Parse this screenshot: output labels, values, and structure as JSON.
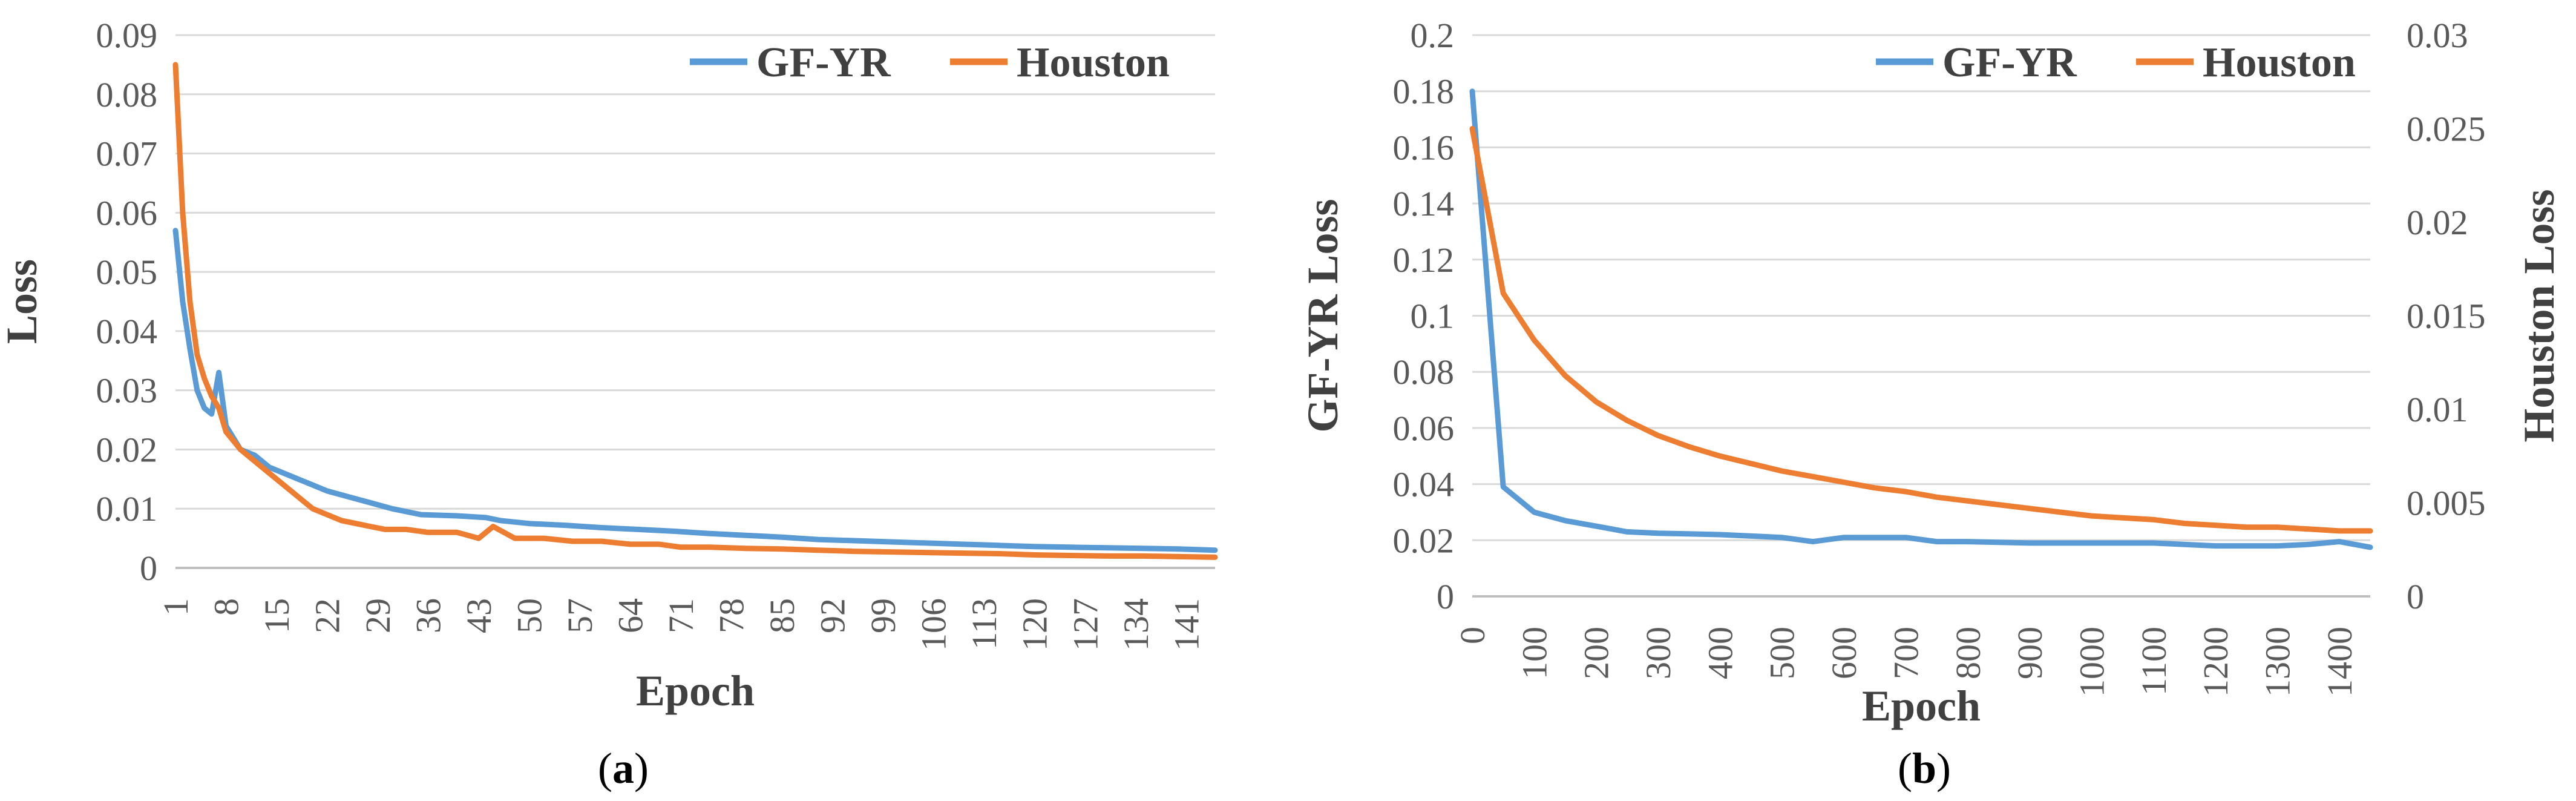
{
  "colors": {
    "gf_yr": "#5b9bd5",
    "houston": "#ed7d31",
    "grid": "#d9d9d9",
    "axis": "#bfbfbf"
  },
  "captions": [
    {
      "open": "(",
      "letter": "a",
      "close": ")"
    },
    {
      "open": "(",
      "letter": "b",
      "close": ")"
    }
  ],
  "chart_data": [
    {
      "type": "line",
      "panel": "a",
      "title": "",
      "xlabel": "Epoch",
      "ylabel": "Loss",
      "ylim": [
        0,
        0.09
      ],
      "grid": true,
      "legend": "top-right",
      "yticks": [
        "0",
        "0.01",
        "0.02",
        "0.03",
        "0.04",
        "0.05",
        "0.06",
        "0.07",
        "0.08",
        "0.09"
      ],
      "xticks": [
        "1",
        "8",
        "15",
        "22",
        "29",
        "36",
        "43",
        "50",
        "57",
        "64",
        "71",
        "78",
        "85",
        "92",
        "99",
        "106",
        "113",
        "120",
        "127",
        "134",
        "141"
      ],
      "xrange": [
        1,
        145
      ],
      "series": [
        {
          "name": "GF-YR",
          "color": "#5b9bd5",
          "points": [
            [
              1,
              0.057
            ],
            [
              2,
              0.045
            ],
            [
              3,
              0.037
            ],
            [
              4,
              0.03
            ],
            [
              5,
              0.027
            ],
            [
              6,
              0.026
            ],
            [
              7,
              0.033
            ],
            [
              8,
              0.024
            ],
            [
              10,
              0.02
            ],
            [
              12,
              0.019
            ],
            [
              14,
              0.017
            ],
            [
              16,
              0.016
            ],
            [
              18,
              0.015
            ],
            [
              20,
              0.014
            ],
            [
              22,
              0.013
            ],
            [
              25,
              0.012
            ],
            [
              28,
              0.011
            ],
            [
              31,
              0.01
            ],
            [
              35,
              0.009
            ],
            [
              40,
              0.0088
            ],
            [
              44,
              0.0085
            ],
            [
              46,
              0.008
            ],
            [
              50,
              0.0075
            ],
            [
              55,
              0.0072
            ],
            [
              60,
              0.0068
            ],
            [
              65,
              0.0065
            ],
            [
              70,
              0.0062
            ],
            [
              75,
              0.0058
            ],
            [
              80,
              0.0055
            ],
            [
              85,
              0.0052
            ],
            [
              90,
              0.0048
            ],
            [
              95,
              0.0046
            ],
            [
              100,
              0.0044
            ],
            [
              105,
              0.0042
            ],
            [
              110,
              0.004
            ],
            [
              115,
              0.0038
            ],
            [
              120,
              0.0036
            ],
            [
              125,
              0.0035
            ],
            [
              130,
              0.0034
            ],
            [
              135,
              0.0033
            ],
            [
              140,
              0.0032
            ],
            [
              145,
              0.003
            ]
          ]
        },
        {
          "name": "Houston",
          "color": "#ed7d31",
          "points": [
            [
              1,
              0.085
            ],
            [
              2,
              0.06
            ],
            [
              3,
              0.045
            ],
            [
              4,
              0.036
            ],
            [
              5,
              0.032
            ],
            [
              6,
              0.029
            ],
            [
              7,
              0.027
            ],
            [
              8,
              0.023
            ],
            [
              10,
              0.02
            ],
            [
              12,
              0.018
            ],
            [
              14,
              0.016
            ],
            [
              16,
              0.014
            ],
            [
              18,
              0.012
            ],
            [
              20,
              0.01
            ],
            [
              22,
              0.009
            ],
            [
              24,
              0.008
            ],
            [
              26,
              0.0075
            ],
            [
              28,
              0.007
            ],
            [
              30,
              0.0065
            ],
            [
              33,
              0.0065
            ],
            [
              36,
              0.006
            ],
            [
              40,
              0.006
            ],
            [
              43,
              0.005
            ],
            [
              45,
              0.007
            ],
            [
              48,
              0.005
            ],
            [
              52,
              0.005
            ],
            [
              56,
              0.0045
            ],
            [
              60,
              0.0045
            ],
            [
              64,
              0.004
            ],
            [
              68,
              0.004
            ],
            [
              71,
              0.0035
            ],
            [
              75,
              0.0035
            ],
            [
              80,
              0.0033
            ],
            [
              85,
              0.0032
            ],
            [
              90,
              0.003
            ],
            [
              95,
              0.0028
            ],
            [
              100,
              0.0027
            ],
            [
              105,
              0.0026
            ],
            [
              110,
              0.0025
            ],
            [
              115,
              0.0024
            ],
            [
              120,
              0.0022
            ],
            [
              125,
              0.0021
            ],
            [
              130,
              0.002
            ],
            [
              135,
              0.002
            ],
            [
              140,
              0.0019
            ],
            [
              145,
              0.0018
            ]
          ]
        }
      ]
    },
    {
      "type": "line",
      "panel": "b",
      "title": "",
      "xlabel": "Epoch",
      "ylabel": "GF-YR  Loss",
      "y2label": "Houston  Loss",
      "ylim": [
        0,
        0.2
      ],
      "y2lim": [
        0,
        0.03
      ],
      "grid": true,
      "legend": "top-right",
      "yticks": [
        "0",
        "0.02",
        "0.04",
        "0.06",
        "0.08",
        "0.1",
        "0.12",
        "0.14",
        "0.16",
        "0.18",
        "0.2"
      ],
      "y2ticks": [
        "0",
        "0.005",
        "0.01",
        "0.015",
        "0.02",
        "0.025",
        "0.03"
      ],
      "xticks": [
        "0",
        "100",
        "200",
        "300",
        "400",
        "500",
        "600",
        "700",
        "800",
        "900",
        "1000",
        "1100",
        "1200",
        "1300",
        "1400"
      ],
      "xrange": [
        0,
        1450
      ],
      "series": [
        {
          "name": "GF-YR",
          "color": "#5b9bd5",
          "axis": "left",
          "points": [
            [
              0,
              0.18
            ],
            [
              50,
              0.039
            ],
            [
              100,
              0.03
            ],
            [
              150,
              0.027
            ],
            [
              200,
              0.025
            ],
            [
              250,
              0.023
            ],
            [
              300,
              0.0225
            ],
            [
              400,
              0.022
            ],
            [
              500,
              0.021
            ],
            [
              550,
              0.0195
            ],
            [
              600,
              0.021
            ],
            [
              700,
              0.021
            ],
            [
              750,
              0.0195
            ],
            [
              800,
              0.0195
            ],
            [
              900,
              0.019
            ],
            [
              1000,
              0.019
            ],
            [
              1100,
              0.019
            ],
            [
              1200,
              0.018
            ],
            [
              1300,
              0.018
            ],
            [
              1350,
              0.0185
            ],
            [
              1400,
              0.0195
            ],
            [
              1450,
              0.0175
            ]
          ]
        },
        {
          "name": "Houston",
          "color": "#ed7d31",
          "axis": "right",
          "points": [
            [
              0,
              0.025
            ],
            [
              50,
              0.0162
            ],
            [
              100,
              0.0137
            ],
            [
              150,
              0.0118
            ],
            [
              200,
              0.0104
            ],
            [
              250,
              0.0094
            ],
            [
              300,
              0.0086
            ],
            [
              350,
              0.008
            ],
            [
              400,
              0.0075
            ],
            [
              450,
              0.0071
            ],
            [
              500,
              0.0067
            ],
            [
              550,
              0.0064
            ],
            [
              600,
              0.0061
            ],
            [
              650,
              0.0058
            ],
            [
              700,
              0.0056
            ],
            [
              750,
              0.0053
            ],
            [
              800,
              0.0051
            ],
            [
              850,
              0.0049
            ],
            [
              900,
              0.0047
            ],
            [
              950,
              0.0045
            ],
            [
              1000,
              0.0043
            ],
            [
              1050,
              0.0042
            ],
            [
              1100,
              0.0041
            ],
            [
              1150,
              0.0039
            ],
            [
              1200,
              0.0038
            ],
            [
              1250,
              0.0037
            ],
            [
              1300,
              0.0037
            ],
            [
              1350,
              0.0036
            ],
            [
              1400,
              0.0035
            ],
            [
              1450,
              0.0035
            ]
          ]
        }
      ]
    }
  ]
}
